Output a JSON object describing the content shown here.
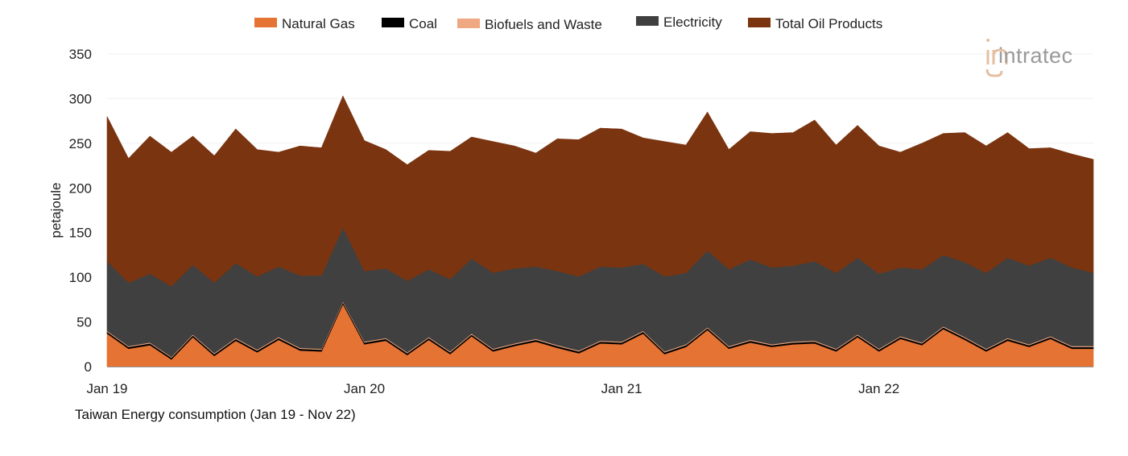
{
  "chart_data": {
    "type": "area",
    "stacked": true,
    "title": "Taiwan Energy consumption (Jan 19 - Nov 22)",
    "xlabel": "",
    "ylabel": "petajoule",
    "ylim": [
      0,
      350
    ],
    "yticks": [
      0,
      50,
      100,
      150,
      200,
      250,
      300,
      350
    ],
    "xtick_labels": [
      "Jan 19",
      "Jan 20",
      "Jan 21",
      "Jan 22"
    ],
    "grid": true,
    "legend_position": "top",
    "categories": [
      "Jan 19",
      "Feb 19",
      "Mar 19",
      "Apr 19",
      "May 19",
      "Jun 19",
      "Jul 19",
      "Aug 19",
      "Sep 19",
      "Oct 19",
      "Nov 19",
      "Dec 19",
      "Jan 20",
      "Feb 20",
      "Mar 20",
      "Apr 20",
      "May 20",
      "Jun 20",
      "Jul 20",
      "Aug 20",
      "Sep 20",
      "Oct 20",
      "Nov 20",
      "Dec 20",
      "Jan 21",
      "Feb 21",
      "Mar 21",
      "Apr 21",
      "May 21",
      "Jun 21",
      "Jul 21",
      "Aug 21",
      "Sep 21",
      "Oct 21",
      "Nov 21",
      "Dec 21",
      "Jan 22",
      "Feb 22",
      "Mar 22",
      "Apr 22",
      "May 22",
      "Jun 22",
      "Jul 22",
      "Aug 22",
      "Sep 22",
      "Oct 22",
      "Nov 22"
    ],
    "series": [
      {
        "name": "Natural Gas",
        "color": "#E57334",
        "values": [
          37,
          20,
          24,
          8,
          33,
          12,
          29,
          16,
          30,
          18,
          17,
          70,
          25,
          29,
          13,
          30,
          14,
          34,
          17,
          23,
          28,
          21,
          15,
          26,
          25,
          37,
          14,
          22,
          41,
          20,
          27,
          22,
          25,
          26,
          17,
          33,
          17,
          31,
          24,
          42,
          30,
          17,
          29,
          22,
          31,
          20,
          20
        ]
      },
      {
        "name": "Coal",
        "color": "#000000",
        "values": [
          2,
          2,
          2,
          2,
          2,
          2,
          2,
          2,
          2,
          2,
          2,
          2,
          2,
          2,
          2,
          2,
          2,
          2,
          2,
          2,
          2,
          2,
          2,
          2,
          2,
          2,
          2,
          2,
          2,
          2,
          2,
          2,
          2,
          2,
          2,
          2,
          2,
          2,
          2,
          2,
          2,
          2,
          2,
          2,
          2,
          2,
          2
        ]
      },
      {
        "name": "Biofuels and Waste",
        "color": "#F0A882",
        "values": [
          1,
          1,
          1,
          1,
          1,
          1,
          1,
          1,
          1,
          1,
          1,
          1,
          1,
          1,
          1,
          1,
          1,
          1,
          1,
          1,
          1,
          1,
          1,
          1,
          1,
          1,
          1,
          1,
          1,
          1,
          1,
          1,
          1,
          1,
          1,
          1,
          1,
          1,
          1,
          1,
          1,
          1,
          1,
          1,
          1,
          1,
          1
        ]
      },
      {
        "name": "Electricity",
        "color": "#404040",
        "values": [
          78,
          71,
          77,
          79,
          78,
          79,
          84,
          82,
          79,
          81,
          82,
          83,
          79,
          78,
          80,
          76,
          81,
          84,
          85,
          84,
          81,
          83,
          83,
          83,
          83,
          75,
          84,
          80,
          86,
          86,
          90,
          86,
          85,
          89,
          85,
          86,
          84,
          77,
          82,
          80,
          84,
          85,
          90,
          88,
          88,
          88,
          82
        ]
      },
      {
        "name": "Total Oil Products",
        "color": "#7B3410",
        "values": [
          162,
          139,
          154,
          150,
          144,
          142,
          150,
          142,
          128,
          145,
          143,
          147,
          146,
          133,
          130,
          133,
          143,
          136,
          147,
          137,
          127,
          148,
          153,
          155,
          155,
          141,
          151,
          143,
          155,
          134,
          143,
          150,
          149,
          158,
          143,
          148,
          143,
          129,
          141,
          136,
          145,
          142,
          140,
          131,
          123,
          127,
          127
        ]
      }
    ]
  },
  "logo": {
    "text": "intratec"
  }
}
